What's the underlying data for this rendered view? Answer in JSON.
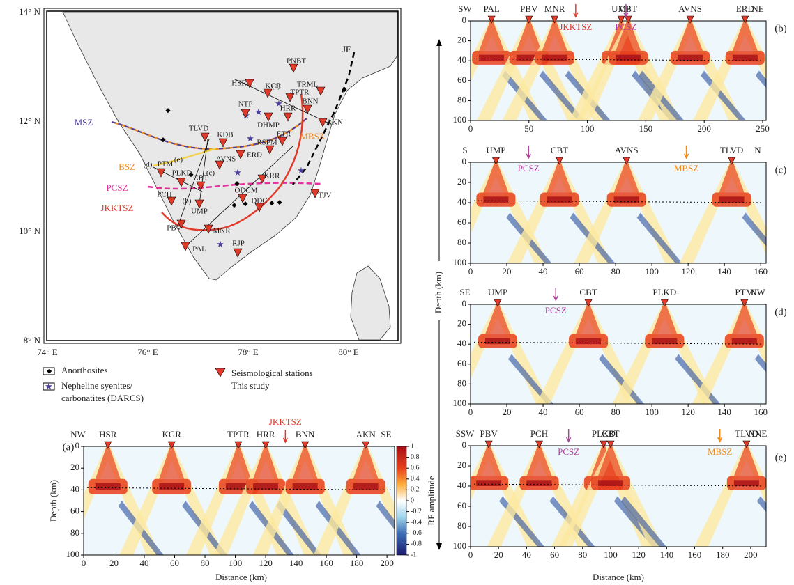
{
  "map": {
    "lat_labels": [
      "14° N",
      "12° N",
      "10° N",
      "8° N"
    ],
    "lon_labels": [
      "74° E",
      "76° E",
      "78° E",
      "80° E"
    ],
    "faults": [
      "MSZ",
      "MBSZ",
      "BSZ",
      "PCSZ",
      "JKKTSZ",
      "JF"
    ],
    "profiles": [
      "(a)",
      "(b)",
      "(c)",
      "(d)",
      "(e)"
    ],
    "stations": [
      "PNBT",
      "HSR",
      "KGR",
      "TPTR",
      "TRML",
      "NTP",
      "HRR",
      "BNN",
      "DHMP",
      "AKN",
      "TLVD",
      "KDB",
      "ETR",
      "RSPM",
      "ERD",
      "AVNS",
      "PTM",
      "PLKD",
      "CBT",
      "KRR",
      "PCH",
      "UMP",
      "ODCM",
      "DDC",
      "TJV",
      "PBV",
      "MNR",
      "PAL",
      "RJP"
    ]
  },
  "legend": [
    "Anorthosites",
    "Nepheline syenites/",
    "carbonatites (DARCS)",
    "Seismological stations",
    "This study"
  ],
  "depth_label": "Depth (km)",
  "distance_label": "Distance (km)",
  "colorbar": {
    "label": "RF amplitude",
    "ticks": [
      1,
      0.8,
      0.6,
      0.4,
      0.2,
      0,
      -0.2,
      -0.4,
      -0.6,
      -0.8,
      -1
    ]
  },
  "sections": [
    {
      "label": "(a)",
      "left": "NW",
      "right": "SE",
      "stations": [
        {
          "name": "HSR",
          "distance": 16
        },
        {
          "name": "KGR",
          "distance": 58
        },
        {
          "name": "TPTR",
          "distance": 102
        },
        {
          "name": "HRR",
          "distance": 120
        },
        {
          "name": "BNN",
          "distance": 146
        },
        {
          "name": "AKN",
          "distance": 186
        }
      ],
      "zones": [
        {
          "name": "JKKTSZ",
          "distance": 133,
          "color": "#e03a2a"
        }
      ],
      "xlim": [
        0,
        205
      ],
      "xticks": [
        0,
        20,
        40,
        60,
        80,
        100,
        120,
        140,
        160,
        180,
        200
      ],
      "ylim": [
        0,
        100
      ],
      "yticks": [
        0,
        20,
        40,
        60,
        80,
        100
      ]
    },
    {
      "label": "(b)",
      "left": "SW",
      "right": "NE",
      "stations": [
        {
          "name": "PAL",
          "distance": 18
        },
        {
          "name": "PBV",
          "distance": 50
        },
        {
          "name": "MNR",
          "distance": 72
        },
        {
          "name": "UMP",
          "distance": 129
        },
        {
          "name": "CBT",
          "distance": 135
        },
        {
          "name": "AVNS",
          "distance": 188
        },
        {
          "name": "ERD",
          "distance": 235
        }
      ],
      "zones": [
        {
          "name": "JKKTSZ",
          "distance": 90,
          "color": "#e03a2a"
        },
        {
          "name": "PCSZ",
          "distance": 133,
          "color": "#b0409a"
        }
      ],
      "xlim": [
        0,
        253
      ],
      "xticks": [
        0,
        50,
        100,
        150,
        200,
        250
      ],
      "ylim": [
        0,
        100
      ],
      "yticks": [
        0,
        20,
        40,
        60,
        80,
        100
      ]
    },
    {
      "label": "(c)",
      "left": "S",
      "right": "N",
      "stations": [
        {
          "name": "UMP",
          "distance": 14
        },
        {
          "name": "CBT",
          "distance": 49
        },
        {
          "name": "AVNS",
          "distance": 86
        },
        {
          "name": "TLVD",
          "distance": 144
        }
      ],
      "zones": [
        {
          "name": "PCSZ",
          "distance": 32,
          "color": "#b0409a"
        },
        {
          "name": "MBSZ",
          "distance": 119,
          "color": "#ee8a1e"
        }
      ],
      "xlim": [
        0,
        163
      ],
      "xticks": [
        0,
        20,
        40,
        60,
        80,
        100,
        120,
        140,
        160
      ],
      "ylim": [
        0,
        100
      ],
      "yticks": [
        0,
        20,
        40,
        60,
        80,
        100
      ]
    },
    {
      "label": "(d)",
      "left": "SE",
      "right": "NW",
      "stations": [
        {
          "name": "UMP",
          "distance": 15
        },
        {
          "name": "CBT",
          "distance": 65
        },
        {
          "name": "PLKD",
          "distance": 107
        },
        {
          "name": "PTM",
          "distance": 151
        }
      ],
      "zones": [
        {
          "name": "PCSZ",
          "distance": 47,
          "color": "#b0409a"
        }
      ],
      "xlim": [
        0,
        163
      ],
      "xticks": [
        0,
        20,
        40,
        60,
        80,
        100,
        120,
        140,
        160
      ],
      "ylim": [
        0,
        100
      ],
      "yticks": [
        0,
        20,
        40,
        60,
        80,
        100
      ]
    },
    {
      "label": "(e)",
      "left": "SSW",
      "right": "NNE",
      "stations": [
        {
          "name": "PBV",
          "distance": 13
        },
        {
          "name": "PCH",
          "distance": 49
        },
        {
          "name": "PLKD",
          "distance": 95
        },
        {
          "name": "CBT",
          "distance": 100
        },
        {
          "name": "TLVD",
          "distance": 197
        }
      ],
      "zones": [
        {
          "name": "PCSZ",
          "distance": 70,
          "color": "#b0409a"
        },
        {
          "name": "MBSZ",
          "distance": 178,
          "color": "#ee8a1e"
        }
      ],
      "xlim": [
        0,
        211
      ],
      "xticks": [
        0,
        20,
        40,
        60,
        80,
        100,
        120,
        140,
        160,
        180,
        200
      ],
      "ylim": [
        0,
        100
      ],
      "yticks": [
        0,
        20,
        40,
        60,
        80,
        100
      ]
    }
  ]
}
